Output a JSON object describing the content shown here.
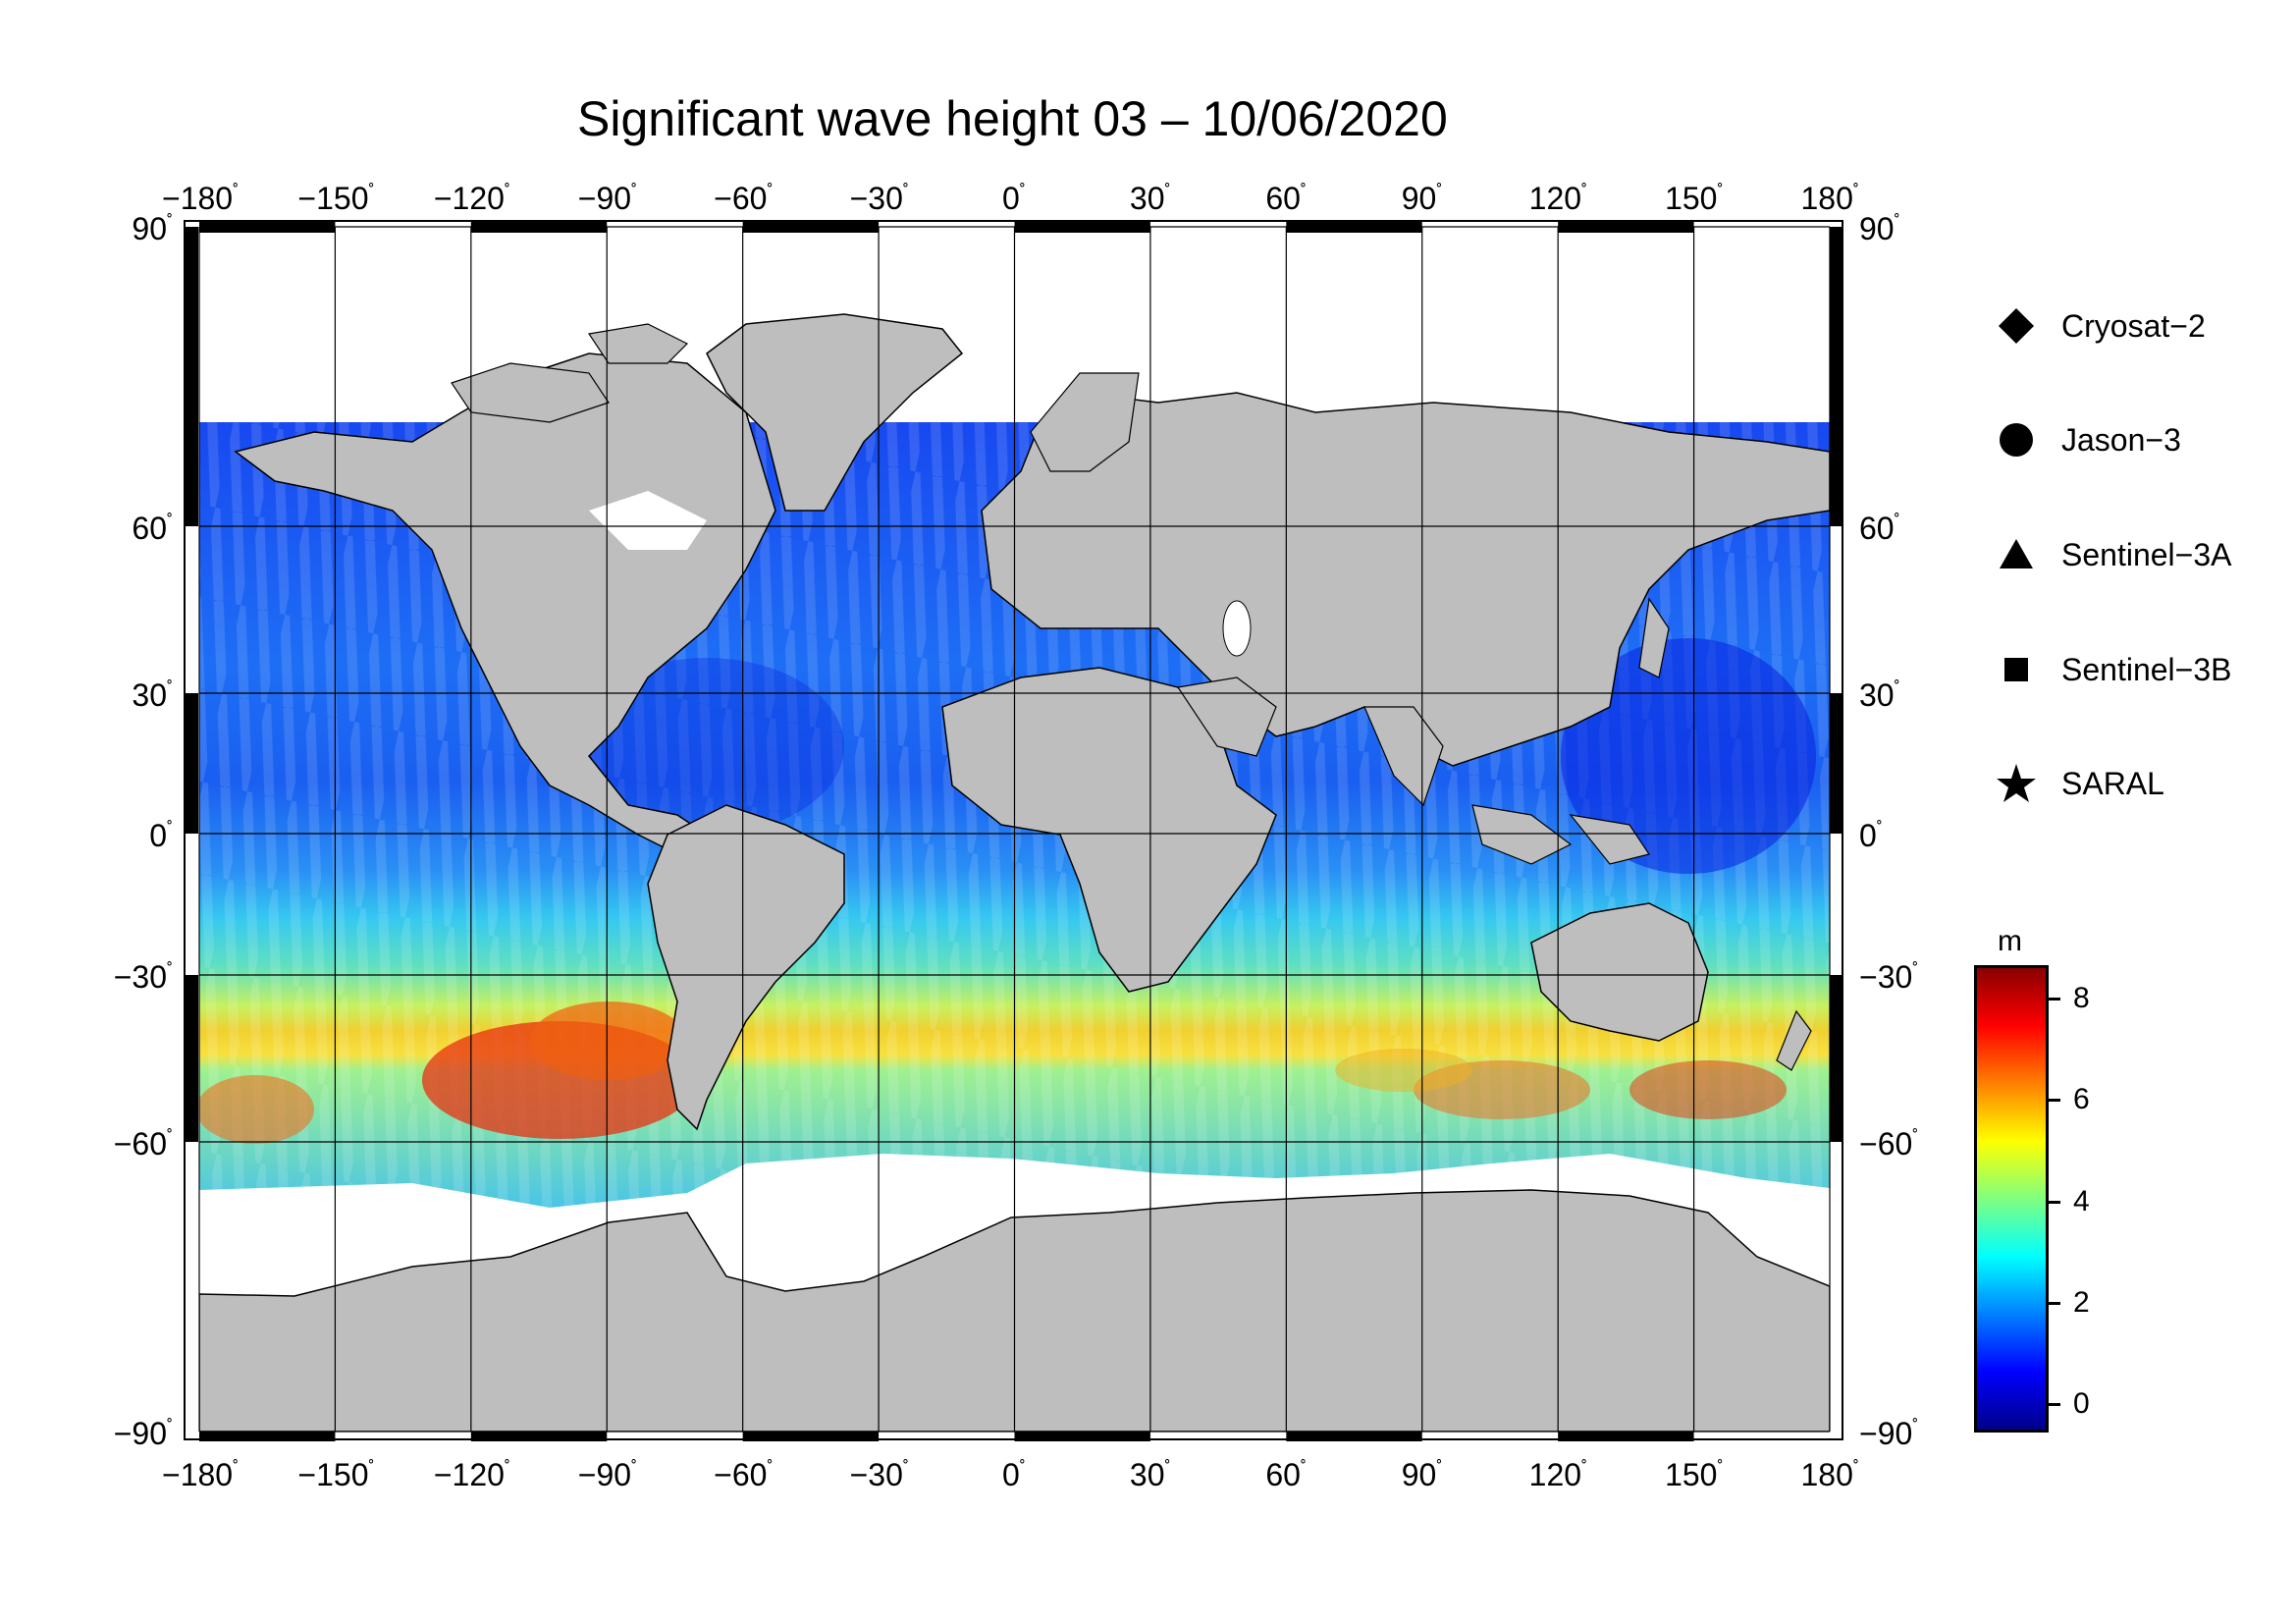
{
  "title": "Significant wave height 03 – 10/06/2020",
  "axes": {
    "x_ticks": [
      "−180",
      "−150",
      "−120",
      "−90",
      "−60",
      "−30",
      "0",
      "30",
      "60",
      "90",
      "120",
      "150",
      "180"
    ],
    "y_ticks": [
      "90",
      "60",
      "30",
      "0",
      "−30",
      "−60",
      "−90"
    ],
    "degree_symbol": "˚"
  },
  "legend": [
    {
      "label": "Cryosat−2",
      "symbol": "diamond-icon"
    },
    {
      "label": "Jason−3",
      "symbol": "circle-icon"
    },
    {
      "label": "Sentinel−3A",
      "symbol": "triangle-icon"
    },
    {
      "label": "Sentinel−3B",
      "symbol": "square-icon"
    },
    {
      "label": "SARAL",
      "symbol": "star-icon"
    }
  ],
  "colorbar": {
    "unit": "m",
    "ticks": [
      "8",
      "6",
      "4",
      "2",
      "0"
    ],
    "range": [
      -0.5,
      8.6
    ],
    "tick_values": [
      8,
      6,
      4,
      2,
      0
    ],
    "colors": [
      "#00008a",
      "#0000ff",
      "#0080ff",
      "#00ffff",
      "#80ff80",
      "#ffff00",
      "#ff8000",
      "#ff0000",
      "#8a0000"
    ]
  },
  "colors": {
    "land": "#bebebe",
    "ice": "#ffffff",
    "frame": "#000000"
  }
}
